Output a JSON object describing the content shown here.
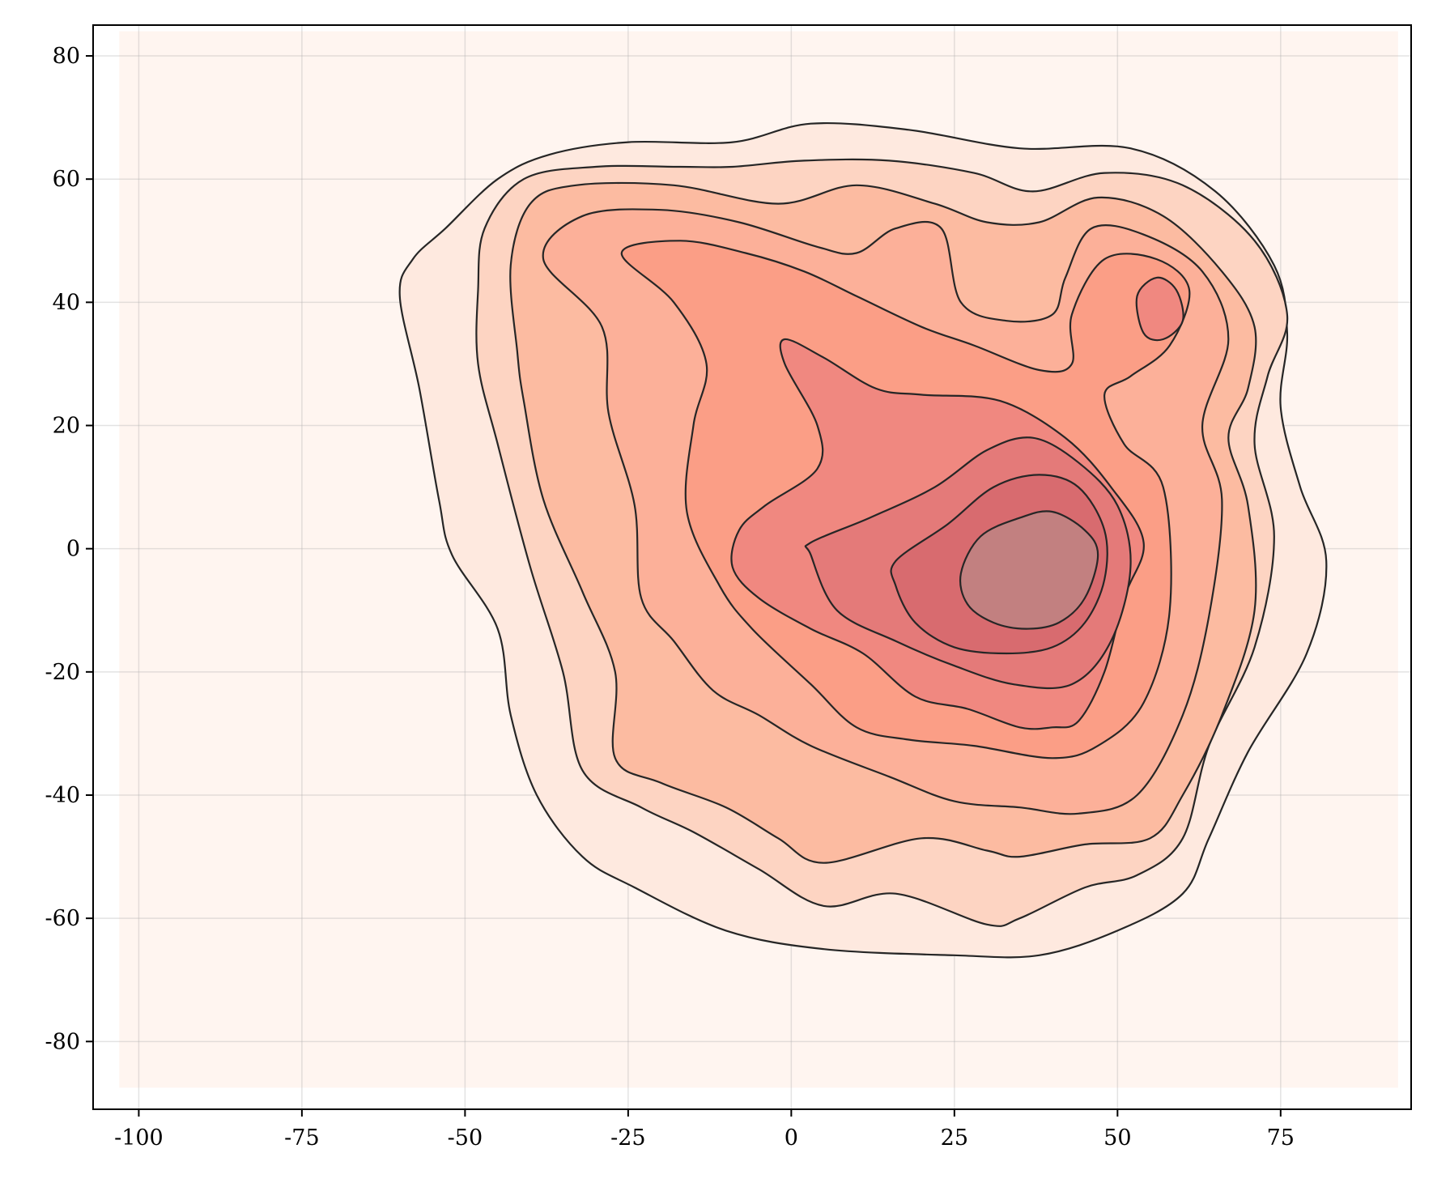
{
  "chart_data": {
    "type": "contour",
    "title": "",
    "xlabel": "",
    "ylabel": "",
    "xlim": [
      -107,
      95
    ],
    "ylim": [
      -91,
      85
    ],
    "x_ticks": [
      -100,
      -75,
      -50,
      -25,
      0,
      25,
      50,
      75
    ],
    "x_tick_labels": [
      "-100",
      "-75",
      "-50",
      "-25",
      "0",
      "25",
      "50",
      "75"
    ],
    "y_ticks": [
      -80,
      -60,
      -40,
      -20,
      0,
      20,
      40,
      60,
      80
    ],
    "y_tick_labels": [
      "-80",
      "-60",
      "-40",
      "-20",
      "0",
      "20",
      "40",
      "60",
      "80"
    ],
    "grid": true,
    "background_region": {
      "x": [
        -103,
        93
      ],
      "y": [
        -87.5,
        84
      ],
      "color": "#fff5f0"
    },
    "levels": [
      {
        "color": "#fee9df",
        "points": [
          [
            -60,
            41
          ],
          [
            -58,
            47
          ],
          [
            -53,
            52
          ],
          [
            -45,
            60
          ],
          [
            -37,
            64
          ],
          [
            -25,
            66
          ],
          [
            -9,
            66
          ],
          [
            3,
            69
          ],
          [
            18,
            68
          ],
          [
            35,
            65
          ],
          [
            52,
            65
          ],
          [
            65,
            58
          ],
          [
            74,
            46
          ],
          [
            76,
            35
          ],
          [
            75,
            23
          ],
          [
            78,
            10
          ],
          [
            82,
            -2
          ],
          [
            79,
            -17
          ],
          [
            70,
            -33
          ],
          [
            64,
            -47
          ],
          [
            60,
            -56
          ],
          [
            50,
            -62
          ],
          [
            38,
            -66
          ],
          [
            25,
            -66
          ],
          [
            5,
            -65
          ],
          [
            -10,
            -62
          ],
          [
            -24,
            -55
          ],
          [
            -32,
            -50
          ],
          [
            -39,
            -40
          ],
          [
            -43,
            -27
          ],
          [
            -45,
            -13
          ],
          [
            -52,
            -1
          ],
          [
            -54,
            8
          ],
          [
            -57,
            26
          ],
          [
            -60,
            41
          ]
        ]
      },
      {
        "color": "#fdd4c2",
        "points": [
          [
            -48,
            42
          ],
          [
            -47,
            52
          ],
          [
            -41,
            60
          ],
          [
            -30,
            62
          ],
          [
            -17,
            62
          ],
          [
            -9,
            62
          ],
          [
            2,
            63
          ],
          [
            15,
            63
          ],
          [
            28,
            61
          ],
          [
            37,
            58
          ],
          [
            48,
            61
          ],
          [
            60,
            59
          ],
          [
            71,
            50
          ],
          [
            76,
            38
          ],
          [
            73,
            28
          ],
          [
            71,
            17
          ],
          [
            74,
            2
          ],
          [
            71,
            -16
          ],
          [
            64,
            -32
          ],
          [
            60,
            -47
          ],
          [
            53,
            -53
          ],
          [
            45,
            -55
          ],
          [
            35,
            -60
          ],
          [
            30,
            -61
          ],
          [
            16,
            -56
          ],
          [
            5,
            -58
          ],
          [
            -5,
            -52
          ],
          [
            -15,
            -46
          ],
          [
            -23,
            -42
          ],
          [
            -32,
            -36
          ],
          [
            -35,
            -20
          ],
          [
            -40,
            -3
          ],
          [
            -45,
            17
          ],
          [
            -48,
            30
          ],
          [
            -48,
            42
          ]
        ]
      },
      {
        "color": "#fcbba1",
        "points": [
          [
            -43,
            46
          ],
          [
            -40,
            56
          ],
          [
            -33,
            59
          ],
          [
            -18,
            59
          ],
          [
            -2,
            56
          ],
          [
            10,
            59
          ],
          [
            22,
            56
          ],
          [
            30,
            53
          ],
          [
            38,
            53
          ],
          [
            47,
            57
          ],
          [
            57,
            54
          ],
          [
            66,
            45
          ],
          [
            71,
            36
          ],
          [
            70,
            26
          ],
          [
            67,
            18
          ],
          [
            70,
            7
          ],
          [
            71,
            -10
          ],
          [
            66,
            -27
          ],
          [
            60,
            -40
          ],
          [
            55,
            -47
          ],
          [
            45,
            -48
          ],
          [
            35,
            -50
          ],
          [
            30,
            -49
          ],
          [
            20,
            -47
          ],
          [
            5,
            -51
          ],
          [
            -2,
            -47
          ],
          [
            -10,
            -42
          ],
          [
            -20,
            -38
          ],
          [
            -27,
            -34
          ],
          [
            -27,
            -20
          ],
          [
            -32,
            -7
          ],
          [
            -38,
            8
          ],
          [
            -41,
            24
          ],
          [
            -42,
            32
          ],
          [
            -43,
            46
          ]
        ]
      },
      {
        "color": "#fcb099",
        "points": [
          [
            -38,
            47
          ],
          [
            -32,
            54
          ],
          [
            -20,
            55
          ],
          [
            -8,
            53
          ],
          [
            4,
            49
          ],
          [
            10,
            48
          ],
          [
            16,
            52
          ],
          [
            23,
            52
          ],
          [
            26,
            40
          ],
          [
            33,
            37
          ],
          [
            40,
            38
          ],
          [
            42,
            44
          ],
          [
            46,
            52
          ],
          [
            54,
            51
          ],
          [
            63,
            45
          ],
          [
            67,
            34
          ],
          [
            63,
            20
          ],
          [
            66,
            8
          ],
          [
            64,
            -11
          ],
          [
            60,
            -27
          ],
          [
            53,
            -40
          ],
          [
            44,
            -43
          ],
          [
            35,
            -42
          ],
          [
            25,
            -41
          ],
          [
            15,
            -37
          ],
          [
            3,
            -32
          ],
          [
            -5,
            -27
          ],
          [
            -12,
            -23
          ],
          [
            -18,
            -15
          ],
          [
            -23,
            -8
          ],
          [
            -24,
            7
          ],
          [
            -28,
            22
          ],
          [
            -29,
            36
          ],
          [
            -38,
            47
          ]
        ]
      },
      {
        "color": "#fb9e86",
        "points": [
          [
            -26,
            48
          ],
          [
            -17,
            50
          ],
          [
            -7,
            48
          ],
          [
            2,
            45
          ],
          [
            10,
            41
          ],
          [
            20,
            36
          ],
          [
            28,
            33
          ],
          [
            38,
            29
          ],
          [
            43,
            30
          ],
          [
            43,
            38
          ],
          [
            48,
            47
          ],
          [
            56,
            47
          ],
          [
            61,
            42
          ],
          [
            58,
            33
          ],
          [
            52,
            28
          ],
          [
            48,
            25
          ],
          [
            51,
            17
          ],
          [
            57,
            10
          ],
          [
            58,
            -10
          ],
          [
            54,
            -25
          ],
          [
            47,
            -32
          ],
          [
            40,
            -34
          ],
          [
            28,
            -32
          ],
          [
            18,
            -31
          ],
          [
            10,
            -29
          ],
          [
            3,
            -22
          ],
          [
            -6,
            -13
          ],
          [
            -11,
            -6
          ],
          [
            -16,
            6
          ],
          [
            -15,
            20
          ],
          [
            -13,
            30
          ],
          [
            -18,
            40
          ],
          [
            -26,
            48
          ]
        ]
      },
      {
        "color": "#f08880",
        "points": [
          [
            -1,
            34
          ],
          [
            -1,
            30
          ],
          [
            4,
            20
          ],
          [
            4,
            13
          ],
          [
            -4,
            7
          ],
          [
            -8,
            3
          ],
          [
            -9,
            -3
          ],
          [
            -5,
            -8
          ],
          [
            3,
            -13
          ],
          [
            11,
            -17
          ],
          [
            19,
            -24
          ],
          [
            27,
            -26
          ],
          [
            35,
            -29
          ],
          [
            40,
            -29
          ],
          [
            44,
            -28
          ],
          [
            48,
            -20
          ],
          [
            51,
            -8
          ],
          [
            54,
            1
          ],
          [
            49,
            10
          ],
          [
            42,
            18
          ],
          [
            32,
            24
          ],
          [
            20,
            25
          ],
          [
            13,
            26
          ],
          [
            5,
            31
          ],
          [
            -1,
            34
          ]
        ]
      },
      {
        "color": "#e47a79",
        "points": [
          [
            3,
            1
          ],
          [
            12,
            5
          ],
          [
            22,
            10
          ],
          [
            30,
            16
          ],
          [
            37,
            18
          ],
          [
            44,
            14
          ],
          [
            50,
            7
          ],
          [
            52,
            -3
          ],
          [
            49,
            -15
          ],
          [
            43,
            -22
          ],
          [
            34,
            -22
          ],
          [
            25,
            -19
          ],
          [
            16,
            -15
          ],
          [
            7,
            -10
          ],
          [
            3,
            -1
          ],
          [
            3,
            1
          ]
        ]
      },
      {
        "color": "#d86b6f",
        "points": [
          [
            16,
            -2
          ],
          [
            24,
            4
          ],
          [
            31,
            10
          ],
          [
            38,
            12
          ],
          [
            44,
            10
          ],
          [
            48,
            3
          ],
          [
            48,
            -5
          ],
          [
            45,
            -12
          ],
          [
            40,
            -16
          ],
          [
            33,
            -17
          ],
          [
            25,
            -16
          ],
          [
            19,
            -12
          ],
          [
            16,
            -6
          ],
          [
            16,
            -2
          ]
        ]
      },
      {
        "color": "#c28080",
        "points": [
          [
            26,
            -4
          ],
          [
            29,
            2
          ],
          [
            35,
            5
          ],
          [
            40,
            6
          ],
          [
            45,
            3
          ],
          [
            47,
            -1
          ],
          [
            45,
            -8
          ],
          [
            41,
            -12
          ],
          [
            36,
            -13
          ],
          [
            31,
            -12
          ],
          [
            27,
            -9
          ],
          [
            26,
            -4
          ]
        ]
      },
      {
        "color": "#f08880",
        "points": [
          [
            53,
            41
          ],
          [
            56,
            44
          ],
          [
            59,
            42
          ],
          [
            60,
            37
          ],
          [
            57,
            34
          ],
          [
            54,
            35
          ],
          [
            53,
            41
          ]
        ]
      }
    ]
  }
}
